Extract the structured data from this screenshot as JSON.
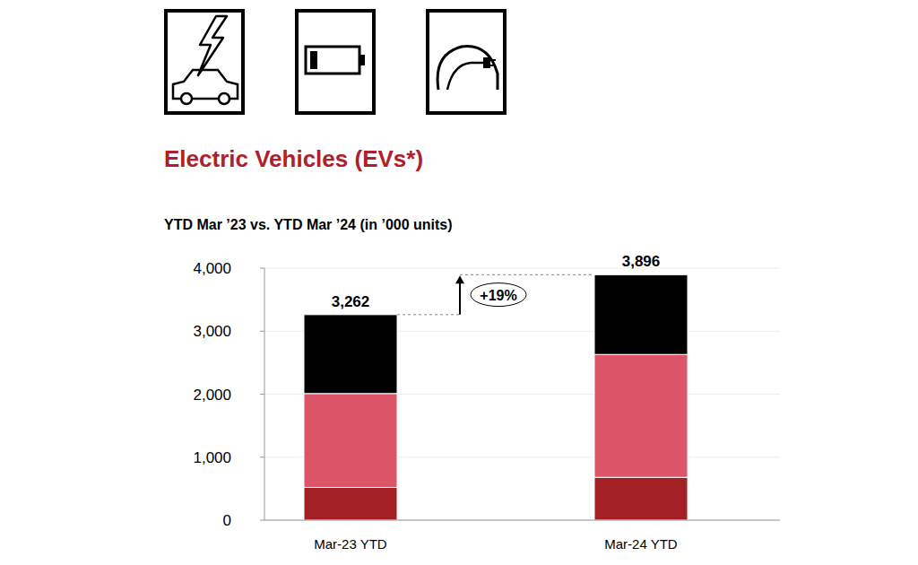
{
  "chart_data": {
    "type": "bar",
    "title": "Electric Vehicles (EVs*)",
    "subtitle": "YTD Mar ’23 vs. YTD Mar ’24 (in ’000 units)",
    "categories": [
      "Mar-23 YTD",
      "Mar-24 YTD"
    ],
    "stacked": true,
    "grid": true,
    "series": [
      {
        "color": "#a21f24",
        "values": [
          520,
          680
        ]
      },
      {
        "color": "#db5468",
        "values": [
          1490,
          1950
        ]
      },
      {
        "color": "#000000",
        "values": [
          1252,
          1266
        ]
      }
    ],
    "totals": [
      3262,
      3896
    ],
    "total_labels": [
      "3,262",
      "3,896"
    ],
    "annotations": [
      {
        "text": "+19%"
      }
    ],
    "ylim": [
      0,
      4000
    ],
    "yticks": [
      0,
      {
        "value": 1000,
        "label": "1,000"
      },
      {
        "value": 2000,
        "label": "2,000"
      },
      {
        "value": 3000,
        "label": "3,000"
      },
      {
        "value": 4000,
        "label": "4,000"
      }
    ]
  }
}
